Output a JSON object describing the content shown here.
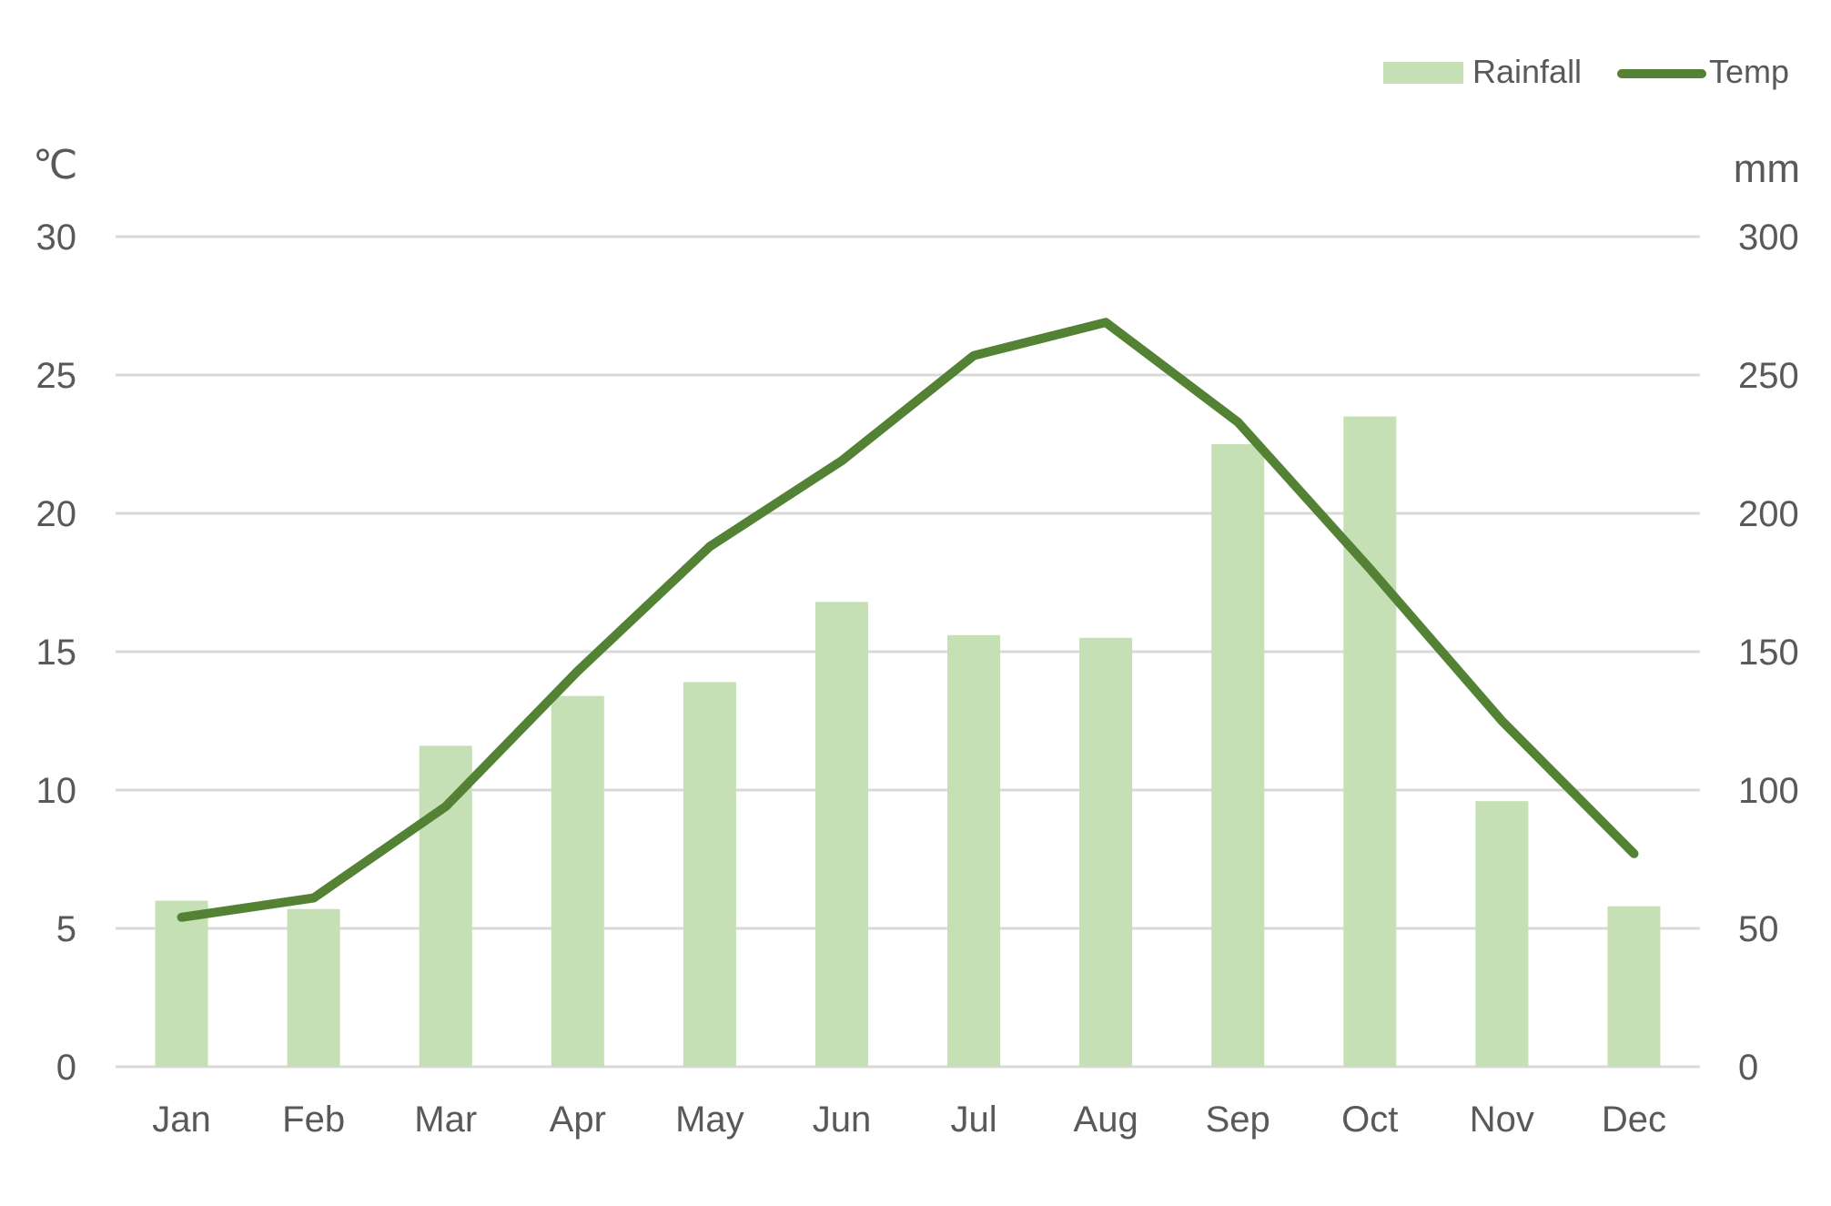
{
  "chart_data": {
    "type": "bar",
    "categories": [
      "Jan",
      "Feb",
      "Mar",
      "Apr",
      "May",
      "Jun",
      "Jul",
      "Aug",
      "Sep",
      "Oct",
      "Nov",
      "Dec"
    ],
    "series": [
      {
        "name": "Rainfall",
        "type": "bar",
        "axis": "right",
        "color": "#c5e0b4",
        "values": [
          60,
          57,
          116,
          134,
          139,
          168,
          156,
          155,
          225,
          235,
          96,
          58
        ]
      },
      {
        "name": "Temp",
        "type": "line",
        "axis": "left",
        "color": "#548235",
        "values": [
          5.4,
          6.1,
          9.4,
          14.3,
          18.8,
          21.9,
          25.7,
          26.9,
          23.3,
          18.0,
          12.5,
          7.7
        ]
      }
    ],
    "y_left": {
      "unit": "℃",
      "min": 0,
      "max": 30,
      "ticks": [
        "0",
        "5",
        "10",
        "15",
        "20",
        "25",
        "30"
      ]
    },
    "y_right": {
      "unit": "mm",
      "min": 0,
      "max": 300,
      "ticks": [
        "0",
        "50",
        "100",
        "150",
        "200",
        "250",
        "300"
      ]
    },
    "grid": true,
    "legend_position": "top-right",
    "gridline_color": "#d9d9d9",
    "text_color": "#595959"
  }
}
